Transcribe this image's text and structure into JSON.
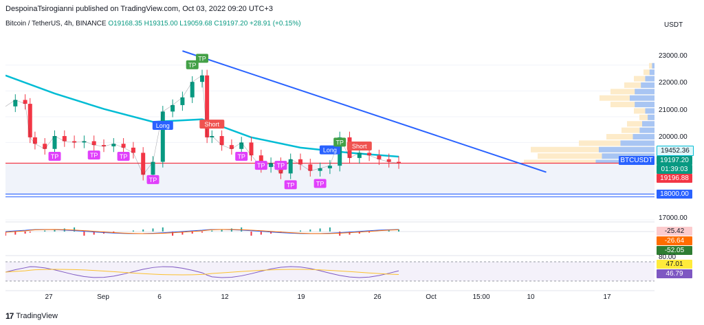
{
  "header": {
    "publisher": "DespoinaTsirogianni published on TradingView.com, Oct 03, 2022 09:20 UTC+3"
  },
  "symbol_bar": {
    "symbol": "Bitcoin / TetherUS, 4h, BINANCE",
    "ohlc": "O19168.35 H19315.00 L19059.68 C19197.20 +28.91 (+0.15%)"
  },
  "currency": "USDT",
  "footer": {
    "brand": "TradingView",
    "logo_glyph": "17"
  },
  "colors": {
    "up": "#089981",
    "down": "#f23645",
    "ma": "#00bcd4",
    "trendline": "#2962ff",
    "tp_badge": "#e040fb",
    "tp_green": "#43a047",
    "short_badge": "#ef5350",
    "long_badge": "#2962ff"
  },
  "chart_data": {
    "type": "candlestick",
    "title": "Bitcoin / TetherUS, 4h, BINANCE",
    "ylim": [
      17000,
      23500
    ],
    "y_ticks": [
      "23000.00",
      "22000.00",
      "21000.00",
      "20000.00",
      "17000.00"
    ],
    "x_ticks": [
      "27",
      "Sep",
      "6",
      "12",
      "19",
      "26",
      "Oct",
      "15:00",
      "10",
      "17"
    ],
    "close_path": [
      [
        "Aug 24",
        21400
      ],
      [
        "Aug 25",
        21650
      ],
      [
        "Aug 26",
        21500
      ],
      [
        "Aug 26 b",
        20200
      ],
      [
        "Aug 27",
        19950
      ],
      [
        "Aug 28",
        19750
      ],
      [
        "Aug 29",
        20250
      ],
      [
        "Aug 30",
        20050
      ],
      [
        "Aug 31",
        20000
      ],
      [
        "Sep 1",
        20050
      ],
      [
        "Sep 2",
        19900
      ],
      [
        "Sep 3",
        19850
      ],
      [
        "Sep 4",
        19950
      ],
      [
        "Sep 5",
        19800
      ],
      [
        "Sep 6",
        19600
      ],
      [
        "Sep 7",
        18750
      ],
      [
        "Sep 8",
        19250
      ],
      [
        "Sep 9",
        21200
      ],
      [
        "Sep 10",
        21450
      ],
      [
        "Sep 11",
        21750
      ],
      [
        "Sep 12",
        22350
      ],
      [
        "Sep 13",
        22600
      ],
      [
        "Sep 13 b",
        20200
      ],
      [
        "Sep 14",
        20250
      ],
      [
        "Sep 15",
        19900
      ],
      [
        "Sep 16",
        19750
      ],
      [
        "Sep 17",
        20000
      ],
      [
        "Sep 18",
        19500
      ],
      [
        "Sep 19",
        19050
      ],
      [
        "Sep 20",
        19200
      ],
      [
        "Sep 21",
        18800
      ],
      [
        "Sep 22",
        19350
      ],
      [
        "Sep 23",
        19150
      ],
      [
        "Sep 24",
        18900
      ],
      [
        "Sep 25",
        19000
      ],
      [
        "Sep 26",
        19100
      ],
      [
        "Sep 27",
        20200
      ],
      [
        "Sep 28",
        19400
      ],
      [
        "Sep 29",
        19600
      ],
      [
        "Sep 30",
        19500
      ],
      [
        "Oct 1",
        19350
      ],
      [
        "Oct 2",
        19250
      ],
      [
        "Oct 3",
        19197.2
      ]
    ],
    "moving_average": [
      [
        "Aug 24",
        22600
      ],
      [
        "Aug 29",
        21900
      ],
      [
        "Sep 3",
        21300
      ],
      [
        "Sep 8",
        20800
      ],
      [
        "Sep 13",
        20900
      ],
      [
        "Sep 18",
        20200
      ],
      [
        "Sep 23",
        19800
      ],
      [
        "Sep 28",
        19600
      ],
      [
        "Oct 3",
        19452.36
      ]
    ],
    "trendline": {
      "from": [
        "Sep 11",
        23550
      ],
      "to": [
        "Oct 18",
        18850
      ]
    },
    "horizontal_lines": [
      {
        "price": 19196.88,
        "color": "#f23645"
      },
      {
        "price": 18000.0,
        "color": "#2962ff"
      }
    ],
    "price_tags": {
      "ma_value": "19452.36",
      "symbol": "BTCUSDT",
      "last_price": "19197.20",
      "countdown": "01:39:03",
      "line_price": "19196.88",
      "support": "18000.00"
    },
    "markers": [
      {
        "label": "TP",
        "at": [
          "Aug 29",
          19450
        ]
      },
      {
        "label": "TP",
        "at": [
          "Sep 2",
          19500
        ]
      },
      {
        "label": "TP",
        "at": [
          "Sep 5",
          19450
        ]
      },
      {
        "label": "TP",
        "at": [
          "Sep 8",
          18550
        ]
      },
      {
        "label": "TP",
        "at": [
          "Sep 12",
          23000
        ]
      },
      {
        "label": "TP",
        "at": [
          "Sep 13",
          23250
        ]
      },
      {
        "label": "Long",
        "at": [
          "Sep 9",
          20650
        ]
      },
      {
        "label": "Short",
        "at": [
          "Sep 14",
          20700
        ]
      },
      {
        "label": "TP",
        "at": [
          "Sep 17",
          19450
        ]
      },
      {
        "label": "TP",
        "at": [
          "Sep 19",
          19100
        ]
      },
      {
        "label": "TP",
        "at": [
          "Sep 21",
          19100
        ]
      },
      {
        "label": "TP",
        "at": [
          "Sep 22",
          18350
        ]
      },
      {
        "label": "TP",
        "at": [
          "Sep 25",
          18400
        ]
      },
      {
        "label": "Long",
        "at": [
          "Sep 26",
          19700
        ]
      },
      {
        "label": "TP",
        "at": [
          "Sep 27",
          20000
        ]
      },
      {
        "label": "Short",
        "at": [
          "Sep 29",
          19850
        ]
      }
    ],
    "macd": {
      "values": [
        "-25.42",
        "-26.64",
        "-52.05"
      ]
    },
    "rsi": {
      "upper_level": "80.00",
      "values": [
        "47.01",
        "46.79"
      ]
    }
  }
}
